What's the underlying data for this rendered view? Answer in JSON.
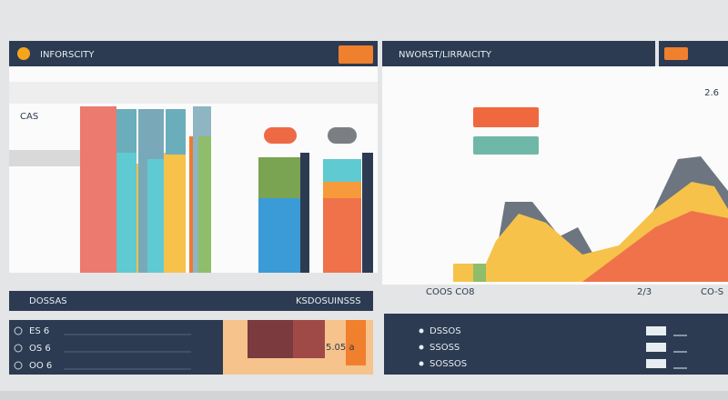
{
  "left_panel": {
    "title": "INFORSCITY",
    "side_label": "CAS",
    "footer_left": "DOSSAS",
    "footer_right": "KSDOSUINSSS",
    "rows": [
      "ES 6",
      "OS 6",
      "OO 6"
    ],
    "value": "5.05 a"
  },
  "right_panel": {
    "title": "NWORST/LIRRAICITY",
    "value": "2.6",
    "x_labels": [
      "COOS CO8",
      "2/3",
      "CO-S"
    ],
    "rows": [
      "DSSOS",
      "SSOSS",
      "SOSSOS"
    ]
  }
}
